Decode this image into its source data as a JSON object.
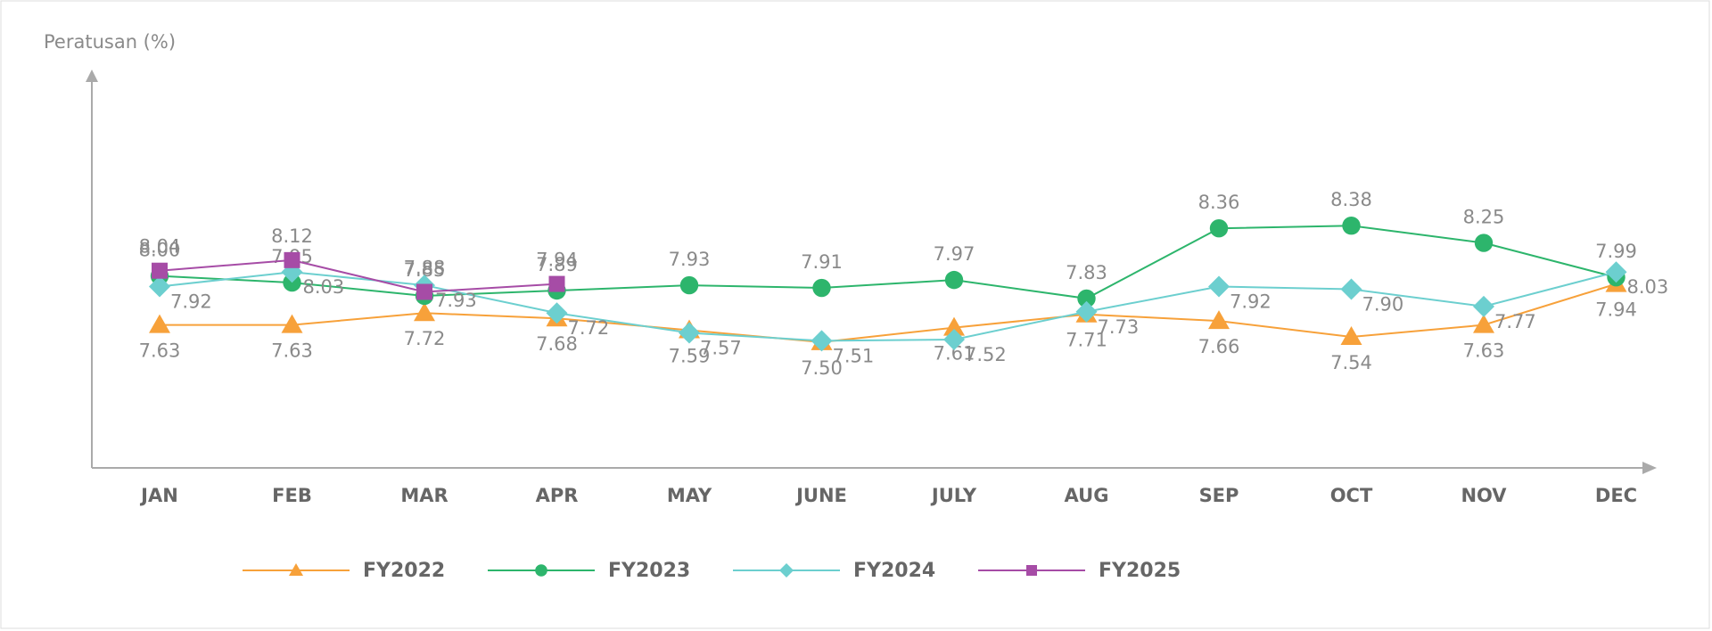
{
  "chart_data": {
    "type": "line",
    "y_label": "Peratusan (%)",
    "categories": [
      "JAN",
      "FEB",
      "MAR",
      "APR",
      "MAY",
      "JUNE",
      "JULY",
      "AUG",
      "SEP",
      "OCT",
      "NOV",
      "DEC"
    ],
    "ylim": [
      6.55,
      9.56
    ],
    "series": [
      {
        "name": "FY2022",
        "color": "#f7a13a",
        "marker": "triangle",
        "values": [
          7.63,
          7.63,
          7.72,
          7.68,
          7.59,
          7.5,
          7.61,
          7.71,
          7.66,
          7.54,
          7.63,
          7.94
        ]
      },
      {
        "name": "FY2023",
        "color": "#2db56c",
        "marker": "circle",
        "values": [
          8.0,
          7.95,
          7.85,
          7.89,
          7.93,
          7.91,
          7.97,
          7.83,
          8.36,
          8.38,
          8.25,
          7.99
        ]
      },
      {
        "name": "FY2024",
        "color": "#6ccfcf",
        "marker": "diamond",
        "values": [
          7.92,
          8.03,
          7.93,
          7.72,
          7.57,
          7.51,
          7.52,
          7.73,
          7.92,
          7.9,
          7.77,
          8.03
        ]
      },
      {
        "name": "FY2025",
        "color": "#a64ca6",
        "marker": "square",
        "values": [
          8.04,
          8.12,
          7.88,
          7.94,
          null,
          null,
          null,
          null,
          null,
          null,
          null,
          null
        ]
      }
    ]
  }
}
